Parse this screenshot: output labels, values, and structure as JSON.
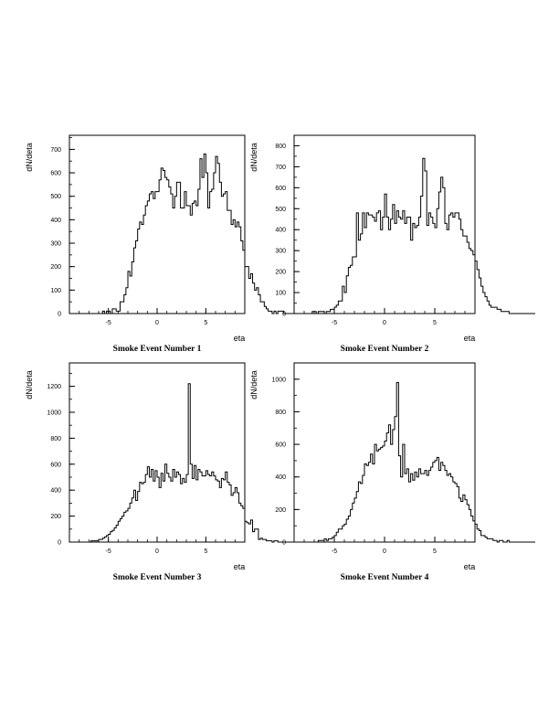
{
  "chart_data": [
    {
      "type": "histogram",
      "title": "Smoke Event Number 1",
      "xlabel": "eta",
      "ylabel": "dN/deta",
      "xlim": [
        -9,
        9
      ],
      "ylim": [
        0,
        760
      ],
      "xticks": [
        -5,
        0,
        5
      ],
      "xtick_labels": [
        "-5",
        "0",
        "5"
      ],
      "yticks": [
        0,
        100,
        200,
        300,
        400,
        500,
        600,
        700
      ],
      "ytick_labels": [
        "0",
        "100",
        "200",
        "300",
        "400",
        "500",
        "600",
        "700"
      ],
      "bin_edges_start": -9,
      "bin_width": 0.2,
      "values": [
        0,
        0,
        0,
        0,
        0,
        0,
        0,
        0,
        0,
        0,
        0,
        0,
        0,
        0,
        0,
        0,
        0,
        10,
        0,
        10,
        10,
        0,
        20,
        20,
        10,
        10,
        50,
        50,
        80,
        110,
        180,
        160,
        220,
        280,
        310,
        360,
        390,
        380,
        420,
        460,
        480,
        510,
        520,
        490,
        520,
        520,
        570,
        620,
        610,
        580,
        570,
        540,
        510,
        450,
        500,
        560,
        560,
        450,
        450,
        520,
        460,
        460,
        420,
        470,
        480,
        460,
        530,
        660,
        580,
        680,
        600,
        450,
        520,
        530,
        600,
        670,
        640,
        560,
        500,
        510,
        520,
        440,
        440,
        380,
        400,
        370,
        390,
        370,
        310,
        270,
        200,
        200,
        150,
        170,
        130,
        100,
        110,
        80,
        50,
        50,
        30,
        20,
        10,
        10,
        0,
        10,
        0,
        10,
        10,
        10,
        0,
        0,
        0,
        0,
        0,
        0,
        0,
        0,
        0,
        0
      ]
    },
    {
      "type": "histogram",
      "title": "Smoke Event Number 2",
      "xlabel": "eta",
      "ylabel": "dN/deta",
      "xlim": [
        -9,
        9
      ],
      "ylim": [
        0,
        850
      ],
      "xticks": [
        -5,
        0,
        5
      ],
      "xtick_labels": [
        "-5",
        "0",
        "5"
      ],
      "yticks": [
        0,
        100,
        200,
        300,
        400,
        500,
        600,
        700,
        800
      ],
      "ytick_labels": [
        "0",
        "100",
        "200",
        "300",
        "400",
        "500",
        "600",
        "700",
        "800"
      ],
      "bin_edges_start": -9,
      "bin_width": 0.2,
      "values": [
        0,
        0,
        0,
        0,
        0,
        0,
        0,
        0,
        0,
        10,
        10,
        0,
        10,
        10,
        10,
        0,
        10,
        10,
        20,
        20,
        30,
        40,
        60,
        60,
        130,
        100,
        180,
        220,
        230,
        270,
        270,
        480,
        350,
        380,
        480,
        410,
        480,
        470,
        470,
        460,
        440,
        480,
        490,
        400,
        460,
        570,
        460,
        400,
        450,
        520,
        430,
        490,
        460,
        450,
        490,
        430,
        460,
        460,
        350,
        430,
        410,
        420,
        460,
        560,
        740,
        680,
        420,
        480,
        460,
        430,
        410,
        500,
        580,
        650,
        600,
        430,
        400,
        470,
        480,
        460,
        480,
        480,
        450,
        400,
        370,
        370,
        340,
        310,
        300,
        280,
        250,
        210,
        170,
        130,
        100,
        80,
        60,
        40,
        30,
        30,
        30,
        20,
        20,
        10,
        10,
        10,
        10,
        0,
        0,
        0,
        0,
        0,
        0,
        0,
        0,
        0,
        0,
        0,
        0,
        0
      ]
    },
    {
      "type": "histogram",
      "title": "Smoke Event Number 3",
      "xlabel": "eta",
      "ylabel": "dN/deta",
      "xlim": [
        -9,
        9
      ],
      "ylim": [
        0,
        1380
      ],
      "xticks": [
        -5,
        0,
        5
      ],
      "xtick_labels": [
        "-5",
        "0",
        "5"
      ],
      "yticks": [
        0,
        200,
        400,
        600,
        800,
        1000,
        1200
      ],
      "ytick_labels": [
        "0",
        "200",
        "400",
        "600",
        "800",
        "1000",
        "1200"
      ],
      "bin_edges_start": -9,
      "bin_width": 0.2,
      "values": [
        0,
        0,
        0,
        0,
        0,
        0,
        0,
        0,
        0,
        0,
        0,
        10,
        10,
        10,
        10,
        20,
        20,
        30,
        40,
        50,
        60,
        80,
        90,
        110,
        130,
        160,
        180,
        200,
        230,
        240,
        260,
        300,
        340,
        400,
        320,
        390,
        460,
        450,
        460,
        520,
        580,
        500,
        560,
        470,
        550,
        500,
        420,
        530,
        470,
        600,
        530,
        500,
        470,
        560,
        500,
        540,
        520,
        450,
        490,
        460,
        520,
        1220,
        600,
        490,
        590,
        480,
        560,
        540,
        510,
        510,
        550,
        520,
        510,
        540,
        510,
        480,
        470,
        420,
        490,
        480,
        540,
        460,
        440,
        360,
        380,
        420,
        380,
        300,
        280,
        260,
        160,
        150,
        140,
        170,
        80,
        100,
        100,
        20,
        30,
        20,
        20,
        10,
        10,
        10,
        0,
        10,
        10,
        0,
        0,
        0,
        0,
        0,
        0,
        0,
        0,
        0,
        0,
        0,
        0,
        0
      ]
    },
    {
      "type": "histogram",
      "title": "Smoke Event Number 4",
      "xlabel": "eta",
      "ylabel": "dN/deta",
      "xlim": [
        -9,
        9
      ],
      "ylim": [
        0,
        1100
      ],
      "xticks": [
        -5,
        0,
        5
      ],
      "xtick_labels": [
        "-5",
        "0",
        "5"
      ],
      "yticks": [
        0,
        200,
        400,
        600,
        800,
        1000
      ],
      "ytick_labels": [
        "0",
        "200",
        "400",
        "600",
        "800",
        "1000"
      ],
      "bin_edges_start": -9,
      "bin_width": 0.2,
      "values": [
        0,
        0,
        0,
        0,
        0,
        0,
        0,
        0,
        0,
        0,
        0,
        0,
        10,
        10,
        10,
        20,
        10,
        20,
        20,
        30,
        40,
        60,
        80,
        80,
        100,
        110,
        140,
        160,
        200,
        240,
        270,
        310,
        370,
        360,
        410,
        480,
        470,
        490,
        540,
        480,
        600,
        560,
        570,
        580,
        590,
        620,
        670,
        720,
        600,
        690,
        770,
        980,
        530,
        400,
        600,
        420,
        450,
        370,
        420,
        380,
        430,
        400,
        450,
        420,
        420,
        440,
        410,
        440,
        460,
        490,
        500,
        520,
        440,
        490,
        470,
        440,
        410,
        420,
        400,
        370,
        360,
        340,
        270,
        250,
        290,
        260,
        230,
        200,
        160,
        130,
        110,
        80,
        70,
        40,
        40,
        30,
        20,
        20,
        20,
        10,
        10,
        0,
        10,
        10,
        0,
        0,
        10,
        0,
        0,
        0,
        0,
        0,
        0,
        0,
        0,
        0,
        0,
        0,
        0,
        0
      ]
    }
  ]
}
